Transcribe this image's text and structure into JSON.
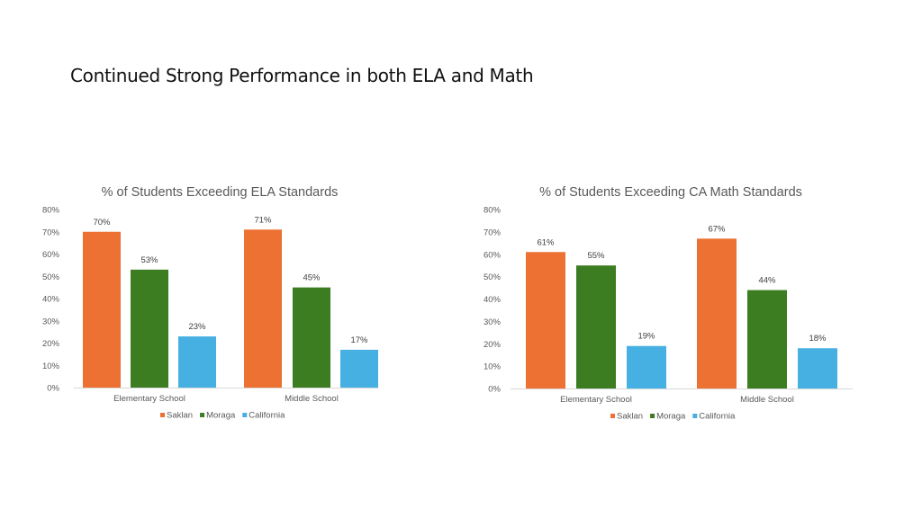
{
  "slide": {
    "title": "Continued Strong Performance in both ELA and Math"
  },
  "chart_data": [
    {
      "type": "bar",
      "title": "% of Students Exceeding ELA Standards",
      "categories": [
        "Elementary School",
        "Middle School"
      ],
      "series": [
        {
          "name": "Saklan",
          "color": "#ED7133",
          "values": [
            70,
            71
          ],
          "labels": [
            "70%",
            "71%"
          ]
        },
        {
          "name": "Moraga",
          "color": "#3C7D22",
          "values": [
            53,
            45
          ],
          "labels": [
            "53%",
            "45%"
          ]
        },
        {
          "name": "California",
          "color": "#47B0E2",
          "values": [
            23,
            17
          ],
          "labels": [
            "23%",
            "17%"
          ]
        }
      ],
      "yticks": [
        "0%",
        "10%",
        "20%",
        "30%",
        "40%",
        "50%",
        "60%",
        "70%",
        "80%"
      ],
      "ylim": [
        0,
        80
      ],
      "xlabel": "",
      "ylabel": "",
      "grid": false,
      "legend": "bottom"
    },
    {
      "type": "bar",
      "title": "% of Students Exceeding CA Math  Standards",
      "categories": [
        "Elementary School",
        "Middle School"
      ],
      "series": [
        {
          "name": "Saklan",
          "color": "#ED7133",
          "values": [
            61,
            67
          ],
          "labels": [
            "61%",
            "67%"
          ]
        },
        {
          "name": "Moraga",
          "color": "#3C7D22",
          "values": [
            55,
            44
          ],
          "labels": [
            "55%",
            "44%"
          ]
        },
        {
          "name": "California",
          "color": "#47B0E2",
          "values": [
            19,
            18
          ],
          "labels": [
            "19%",
            "18%"
          ]
        }
      ],
      "yticks": [
        "0%",
        "10%",
        "20%",
        "30%",
        "40%",
        "50%",
        "60%",
        "70%",
        "80%"
      ],
      "ylim": [
        0,
        80
      ],
      "xlabel": "",
      "ylabel": "",
      "grid": false,
      "legend": "bottom"
    }
  ]
}
